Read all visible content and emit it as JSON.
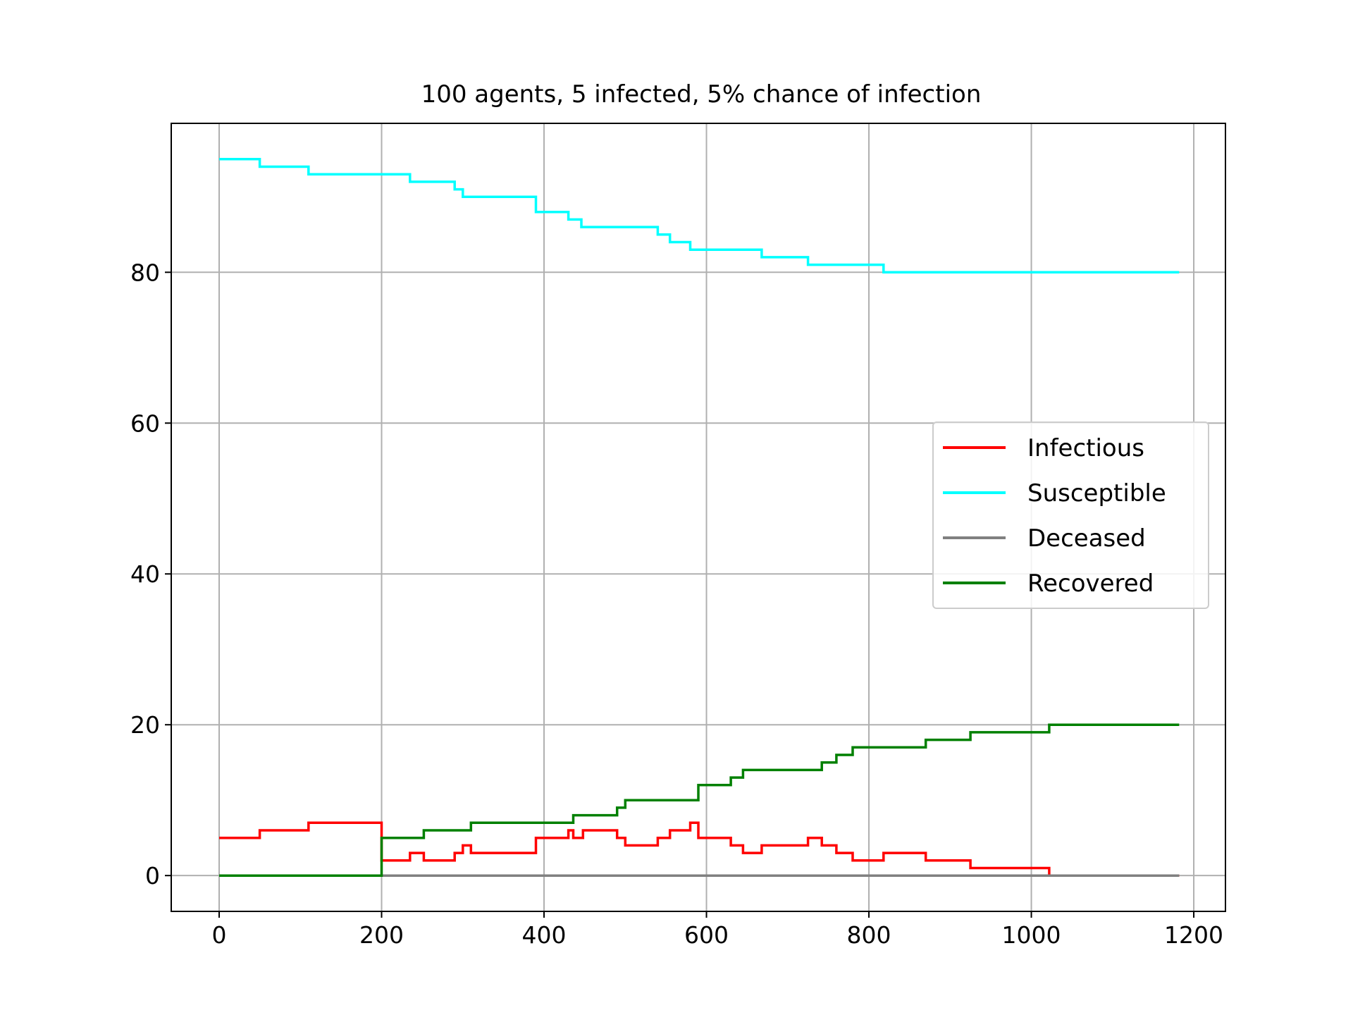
{
  "chart_data": {
    "type": "line",
    "title": "100 agents, 5 infected, 5% chance of infection",
    "xlabel": "",
    "ylabel": "",
    "xlim": [
      -59,
      1239
    ],
    "ylim": [
      -4.75,
      99.75
    ],
    "xticks": [
      0,
      200,
      400,
      600,
      800,
      1000,
      1200
    ],
    "yticks": [
      0,
      20,
      40,
      60,
      80
    ],
    "grid": true,
    "legend_position": "center-right",
    "series": [
      {
        "name": "Infectious",
        "color": "#ff0000",
        "step": "post",
        "x": [
          0,
          50,
          110,
          200,
          235,
          252,
          290,
          300,
          310,
          390,
          430,
          436,
          448,
          490,
          500,
          540,
          555,
          580,
          590,
          630,
          645,
          668,
          725,
          742,
          760,
          780,
          818,
          870,
          925,
          1022,
          1182
        ],
        "y": [
          5,
          6,
          7,
          2,
          3,
          2,
          3,
          4,
          3,
          5,
          6,
          5,
          6,
          5,
          4,
          5,
          6,
          7,
          5,
          4,
          3,
          4,
          5,
          4,
          3,
          2,
          3,
          2,
          1,
          0,
          0
        ]
      },
      {
        "name": "Susceptible",
        "color": "#00ffff",
        "step": "post",
        "x": [
          0,
          50,
          110,
          235,
          290,
          300,
          390,
          430,
          446,
          540,
          555,
          580,
          668,
          725,
          818,
          1182
        ],
        "y": [
          95,
          94,
          93,
          92,
          91,
          90,
          88,
          87,
          86,
          85,
          84,
          83,
          82,
          81,
          80,
          80
        ]
      },
      {
        "name": "Deceased",
        "color": "#808080",
        "step": "post",
        "x": [
          0,
          1182
        ],
        "y": [
          0,
          0
        ]
      },
      {
        "name": "Recovered",
        "color": "#008000",
        "step": "post",
        "x": [
          0,
          200,
          252,
          310,
          436,
          490,
          500,
          590,
          630,
          645,
          742,
          760,
          780,
          870,
          925,
          1022,
          1182
        ],
        "y": [
          0,
          5,
          6,
          7,
          8,
          9,
          10,
          12,
          13,
          14,
          15,
          16,
          17,
          18,
          19,
          20,
          20
        ]
      }
    ]
  }
}
